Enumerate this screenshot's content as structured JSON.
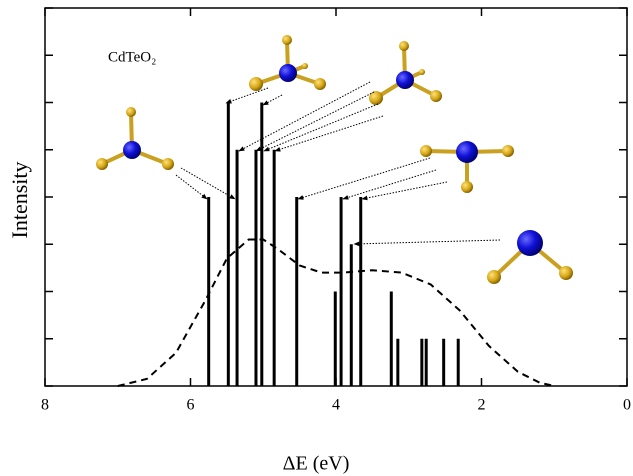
{
  "chart_data": {
    "type": "stick",
    "annotation": "CdTeO₂",
    "xlabel": "ΔE (eV)",
    "ylabel": "Intensity",
    "xlim": [
      8,
      0
    ],
    "xticks": [
      8,
      6,
      4,
      2,
      0
    ],
    "ylim": [
      0,
      8
    ],
    "yticks": [
      0,
      1,
      2,
      3,
      4,
      5,
      6,
      7,
      8
    ],
    "sticks": {
      "color": "#000000",
      "x": [
        5.75,
        5.48,
        5.36,
        5.1,
        5.02,
        4.85,
        4.54,
        4.01,
        3.93,
        3.79,
        3.66,
        3.24,
        3.15,
        2.82,
        2.76,
        2.52,
        2.32
      ],
      "values": [
        4,
        6,
        5,
        5,
        6,
        5,
        4,
        2,
        4,
        3,
        4,
        2,
        1,
        1,
        1,
        1,
        1
      ]
    },
    "envelope": {
      "color": "#000000",
      "x": [
        7.0,
        6.6,
        6.2,
        5.8,
        5.5,
        5.2,
        5.0,
        4.8,
        4.5,
        4.2,
        3.9,
        3.5,
        3.1,
        2.7,
        2.3,
        1.9,
        1.5,
        1.2,
        1.0
      ],
      "values": [
        0,
        0.15,
        0.7,
        1.8,
        2.7,
        3.1,
        3.1,
        2.9,
        2.55,
        2.4,
        2.4,
        2.45,
        2.4,
        2.15,
        1.6,
        0.85,
        0.3,
        0.07,
        0
      ]
    }
  }
}
